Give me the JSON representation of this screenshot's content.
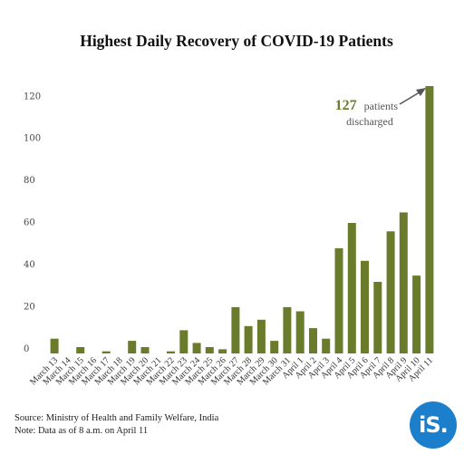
{
  "source_note": "Source: Ministry of Health and Family Welfare, India",
  "data_note": "Note: Data as of 8 a.m. on April 11",
  "logo_text": "iS.",
  "colors": {
    "bar": "#6a7b2c",
    "logo": "#1b7fcc",
    "annotation": "#6a7b2c"
  },
  "chart_data": {
    "type": "bar",
    "title": "Highest Daily Recovery of COVID-19 Patients",
    "xlabel": "",
    "ylabel": "",
    "ylim": [
      0,
      127
    ],
    "yticks": [
      0,
      20,
      40,
      60,
      80,
      100,
      120
    ],
    "grid": false,
    "categories": [
      "March 13",
      "March 14",
      "March 15",
      "March 16",
      "March 17",
      "March 18",
      "March 19",
      "March 20",
      "March 21",
      "March 22",
      "March 23",
      "March 24",
      "March 25",
      "March 26",
      "March 27",
      "March 28",
      "March 29",
      "March 30",
      "March 31",
      "April 1",
      "April 2",
      "April 3",
      "April 4",
      "April 5",
      "April 6",
      "April 7",
      "April 8",
      "April 9",
      "April 10",
      "April 11"
    ],
    "values": [
      7,
      0,
      3,
      0,
      1,
      0,
      6,
      3,
      0,
      1,
      11,
      5,
      3,
      2,
      22,
      13,
      16,
      6,
      22,
      20,
      12,
      7,
      50,
      62,
      44,
      34,
      58,
      67,
      37,
      127
    ],
    "annotation": {
      "number": "127",
      "text1": "patients",
      "text2": "discharged",
      "category": "April 11"
    }
  }
}
